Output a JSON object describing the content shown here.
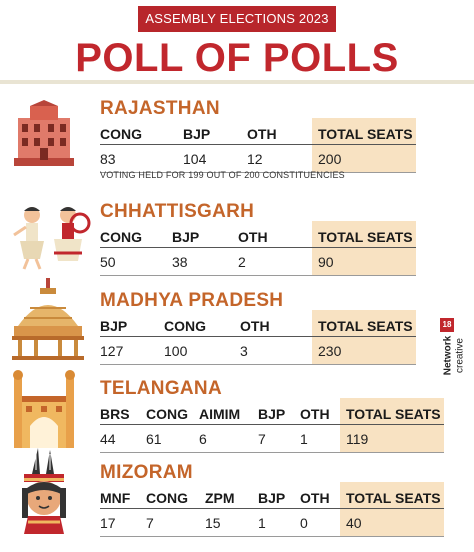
{
  "header": {
    "kicker": "ASSEMBLY ELECTIONS 2023",
    "title": "POLL OF POLLS"
  },
  "states": [
    {
      "name": "RAJASTHAN",
      "columns": [
        "CONG",
        "BJP",
        "OTH",
        "TOTAL SEATS"
      ],
      "values": [
        "83",
        "104",
        "12",
        "200"
      ],
      "note": "VOTING HELD FOR 199 OUT OF 200 CONSTITUENCIES",
      "icon": "palace-icon"
    },
    {
      "name": "CHHATTISGARH",
      "columns": [
        "CONG",
        "BJP",
        "OTH",
        "TOTAL SEATS"
      ],
      "values": [
        "50",
        "38",
        "2",
        "90"
      ],
      "icon": "dancers-icon"
    },
    {
      "name": "MADHYA PRADESH",
      "columns": [
        "BJP",
        "CONG",
        "OTH",
        "TOTAL SEATS"
      ],
      "values": [
        "127",
        "100",
        "3",
        "230"
      ],
      "icon": "stupa-icon"
    },
    {
      "name": "TELANGANA",
      "columns": [
        "BRS",
        "CONG",
        "AIMIM",
        "BJP",
        "OTH",
        "TOTAL SEATS"
      ],
      "values": [
        "44",
        "61",
        "6",
        "7",
        "1",
        "119"
      ],
      "icon": "charminar-icon"
    },
    {
      "name": "MIZORAM",
      "columns": [
        "MNF",
        "CONG",
        "ZPM",
        "BJP",
        "OTH",
        "TOTAL SEATS"
      ],
      "values": [
        "17",
        "7",
        "15",
        "1",
        "0",
        "40"
      ],
      "icon": "tribal-headdress-icon"
    }
  ],
  "brand": {
    "name": "Network",
    "number": "18",
    "tag": "creative"
  },
  "colors": {
    "accent_red": "#c1272d",
    "state_orange": "#c4652a",
    "total_highlight": "#f8e2c2"
  }
}
